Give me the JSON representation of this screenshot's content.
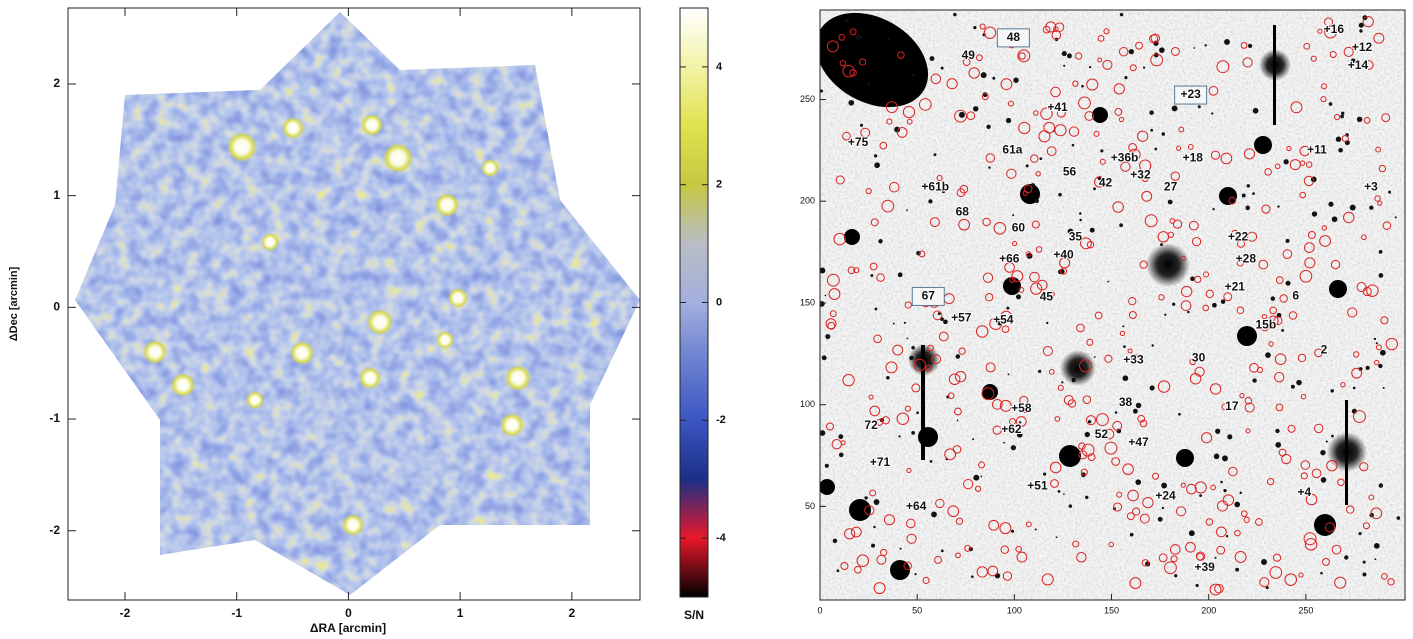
{
  "chart_data": [
    {
      "type": "heatmap",
      "xlabel": "ΔRA [arcmin]",
      "ylabel": "ΔDec [arcmin]",
      "xlim": [
        -2.51,
        2.61
      ],
      "ylim": [
        -2.62,
        2.68
      ],
      "xticks": [
        -2,
        -1,
        0,
        1,
        2
      ],
      "yticks": [
        -2,
        -1,
        0,
        1,
        2
      ],
      "colorbar": {
        "label": "S/N",
        "lim": [
          -5,
          5
        ],
        "ticks": [
          -4,
          -2,
          0,
          2,
          4
        ],
        "colors": [
          "#000000",
          "#e8182a",
          "#1a2f86",
          "#3c56c2",
          "#6a80cf",
          "#a3afdc",
          "#b9bdc6",
          "#c6c842",
          "#e0e24e",
          "#f2f3a6",
          "#ffffff"
        ]
      }
    },
    {
      "type": "image",
      "xlim": [
        0,
        301
      ],
      "ylim": [
        4,
        294
      ],
      "xticks": [
        0,
        50,
        100,
        150,
        200,
        250
      ],
      "yticks": [
        50,
        100,
        150,
        200,
        250
      ],
      "labels": [
        {
          "text": "48",
          "x": 99.5,
          "y": 280.3,
          "boxed": true
        },
        {
          "text": "49",
          "x": 76.3,
          "y": 271.4
        },
        {
          "text": "+16",
          "x": 264.4,
          "y": 284.2
        },
        {
          "text": "+12",
          "x": 278.9,
          "y": 275.4
        },
        {
          "text": "+14",
          "x": 276.8,
          "y": 266.5
        },
        {
          "text": "+23",
          "x": 190.7,
          "y": 252.2,
          "boxed": true
        },
        {
          "text": "+41",
          "x": 122.2,
          "y": 245.8
        },
        {
          "text": "+75",
          "x": 19.6,
          "y": 228.6
        },
        {
          "text": "61a",
          "x": 99,
          "y": 225.1
        },
        {
          "text": "+36b",
          "x": 156.7,
          "y": 221.2
        },
        {
          "text": "+18",
          "x": 191.8,
          "y": 221.2
        },
        {
          "text": "+11",
          "x": 255.7,
          "y": 225.1
        },
        {
          "text": "56",
          "x": 128.4,
          "y": 214.3
        },
        {
          "text": "+32",
          "x": 164.9,
          "y": 212.8
        },
        {
          "text": "42",
          "x": 146.9,
          "y": 208.9
        },
        {
          "text": "+61b",
          "x": 59.3,
          "y": 206.9
        },
        {
          "text": "27",
          "x": 180.4,
          "y": 206.9
        },
        {
          "text": "+3",
          "x": 283.5,
          "y": 206.9
        },
        {
          "text": "68",
          "x": 73.2,
          "y": 194.6
        },
        {
          "text": "60",
          "x": 102.1,
          "y": 186.7
        },
        {
          "text": "+22",
          "x": 215.1,
          "y": 182.3
        },
        {
          "text": "35",
          "x": 131.4,
          "y": 182.3
        },
        {
          "text": "+40",
          "x": 125.3,
          "y": 173.4
        },
        {
          "text": "+66",
          "x": 97.4,
          "y": 171.4
        },
        {
          "text": "+28",
          "x": 219.1,
          "y": 171.4
        },
        {
          "text": "67",
          "x": 55.7,
          "y": 153.2,
          "boxed": true
        },
        {
          "text": "+21",
          "x": 213.4,
          "y": 157.6
        },
        {
          "text": "6",
          "x": 244.8,
          "y": 153.2
        },
        {
          "text": "+57",
          "x": 72.7,
          "y": 142.4
        },
        {
          "text": "+54",
          "x": 94.3,
          "y": 141.4
        },
        {
          "text": "45",
          "x": 116.5,
          "y": 152.7
        },
        {
          "text": "15b",
          "x": 229.4,
          "y": 138.9
        },
        {
          "text": "+33",
          "x": 161.3,
          "y": 121.7
        },
        {
          "text": "30",
          "x": 194.8,
          "y": 122.7
        },
        {
          "text": "2",
          "x": 259.3,
          "y": 126.6
        },
        {
          "text": "38",
          "x": 157.2,
          "y": 100.9
        },
        {
          "text": "17",
          "x": 211.9,
          "y": 99
        },
        {
          "text": "+58",
          "x": 103.6,
          "y": 98
        },
        {
          "text": "72",
          "x": 26.3,
          "y": 89.7
        },
        {
          "text": "+62",
          "x": 98.5,
          "y": 87.7
        },
        {
          "text": "52",
          "x": 144.8,
          "y": 85.3
        },
        {
          "text": "+47",
          "x": 163.9,
          "y": 81.3
        },
        {
          "text": "+71",
          "x": 30.9,
          "y": 71.4
        },
        {
          "text": "+51",
          "x": 111.9,
          "y": 59.9
        },
        {
          "text": "+24",
          "x": 177.8,
          "y": 55
        },
        {
          "text": "+4",
          "x": 249.2,
          "y": 56.7
        },
        {
          "text": "+64",
          "x": 49.5,
          "y": 49.8
        },
        {
          "text": "+39",
          "x": 197.9,
          "y": 19.7
        }
      ]
    }
  ]
}
